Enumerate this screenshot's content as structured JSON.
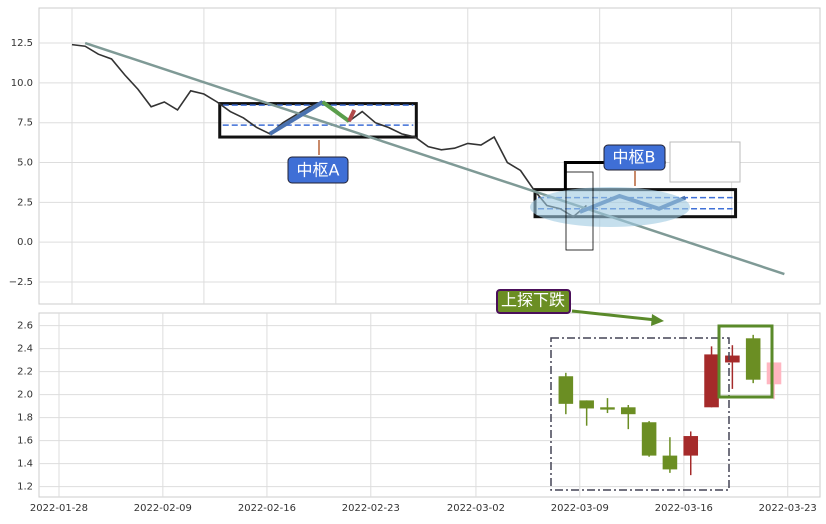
{
  "chart_data": [
    {
      "type": "line",
      "xlim": [
        -2.5,
        56.7
      ],
      "xticks": [
        0,
        10,
        20,
        30,
        40,
        50
      ],
      "ylim": [
        -3.88,
        14.7
      ],
      "yticks": [
        {
          "value": -2.5,
          "label": "−2.5"
        },
        {
          "value": 0,
          "label": "0.0"
        },
        2.5,
        {
          "value": 5,
          "label": "5.0"
        },
        7.5,
        {
          "value": 10,
          "label": "10.0"
        },
        12.5
      ],
      "grid": true,
      "series": [
        {
          "color": "#333333",
          "width": 1.6,
          "x": [
            0,
            1,
            2,
            3,
            4,
            5,
            6,
            7,
            8,
            9,
            10,
            11,
            12,
            13,
            14,
            15,
            16,
            17,
            18,
            19,
            20,
            21,
            22,
            23,
            24,
            25,
            26,
            27,
            28,
            29,
            30,
            31,
            32,
            33,
            34,
            35,
            36,
            37,
            38,
            39
          ],
          "values": [
            12.4,
            12.3,
            11.8,
            11.5,
            10.5,
            9.6,
            8.5,
            8.8,
            8.3,
            9.5,
            9.3,
            8.8,
            8.2,
            7.8,
            7.2,
            6.8,
            7.5,
            8.0,
            8.5,
            8.8,
            8.3,
            7.6,
            8.2,
            7.5,
            7.2,
            6.8,
            6.6,
            6.0,
            5.8,
            5.9,
            6.2,
            6.1,
            6.6,
            5.0,
            4.5,
            3.3,
            2.3,
            2.1,
            1.6,
            2.3
          ]
        },
        {
          "color": "#7f9a96",
          "width": 2.5,
          "x": [
            1,
            54
          ],
          "values": [
            12.5,
            -2.0
          ]
        },
        {
          "color": "#000000",
          "width": 3,
          "x": [
            37.4,
            37.4,
            45
          ],
          "values": [
            3.3,
            5.0,
            5.0
          ]
        },
        {
          "color": "#4a72b0",
          "width": 4,
          "x": [
            15,
            19
          ],
          "values": [
            6.8,
            8.8
          ]
        },
        {
          "color": "#5a9e4b",
          "width": 4,
          "x": [
            19,
            21
          ],
          "values": [
            8.8,
            7.6
          ]
        },
        {
          "color": "#b04a4a",
          "width": 4,
          "x": [
            21,
            21.4
          ],
          "values": [
            7.6,
            8.3
          ]
        },
        {
          "color": "#4a72b0",
          "width": 4,
          "x": [
            38.5,
            41.5,
            44.5,
            46.5
          ],
          "values": [
            1.9,
            2.9,
            2.1,
            2.8
          ]
        }
      ],
      "zones": [
        {
          "label": "中枢A",
          "x": [
            11.2,
            26.1
          ],
          "y": [
            6.6,
            8.7
          ],
          "levels": [
            7.35,
            8.6
          ]
        },
        {
          "label": "中枢B",
          "x": [
            35.1,
            50.3
          ],
          "y": [
            1.6,
            3.3
          ],
          "levels": [
            2.1,
            2.8
          ]
        }
      ]
    },
    {
      "type": "candlestick",
      "xlim": [
        -25.31,
        12.21
      ],
      "xticks": [
        {
          "value": -24.35,
          "label": "2022-01-28"
        },
        {
          "value": -19.36,
          "label": "2022-02-09"
        },
        {
          "value": -14.36,
          "label": "2022-02-16"
        },
        {
          "value": -9.37,
          "label": "2022-02-23"
        },
        {
          "value": -4.32,
          "label": "2022-03-02"
        },
        {
          "value": 0.67,
          "label": "2022-03-09"
        },
        {
          "value": 5.67,
          "label": "2022-03-16"
        },
        {
          "value": 10.66,
          "label": "2022-03-23"
        }
      ],
      "ylim": [
        1.11,
        2.71
      ],
      "yticks": [
        1.2,
        1.4,
        1.6,
        1.8,
        {
          "value": 2,
          "label": "2.0"
        },
        2.2,
        2.4,
        2.6
      ],
      "grid": true,
      "x": [
        0,
        1,
        2,
        3,
        4,
        5,
        6,
        7,
        8,
        9,
        10
      ],
      "open": [
        2.16,
        1.95,
        1.89,
        1.89,
        1.76,
        1.47,
        1.47,
        1.89,
        2.28,
        2.49,
        2.28
      ],
      "high": [
        2.19,
        1.95,
        1.97,
        1.91,
        1.77,
        1.63,
        1.68,
        2.42,
        2.43,
        2.52,
        2.28
      ],
      "low": [
        1.83,
        1.73,
        1.84,
        1.7,
        1.46,
        1.32,
        1.3,
        1.89,
        2.05,
        2.1,
        1.96
      ],
      "close": [
        1.92,
        1.88,
        1.87,
        1.83,
        1.47,
        1.35,
        1.64,
        2.35,
        2.34,
        2.13,
        2.09
      ],
      "colors": [
        "#6b8e23",
        "#6b8e23",
        "#6b8e23",
        "#6b8e23",
        "#6b8e23",
        "#6b8e23",
        "#a52a2a",
        "#a52a2a",
        "#a52a2a",
        "#6b8e23",
        "#ffb6c1"
      ],
      "annotation": "上探下跌"
    }
  ]
}
